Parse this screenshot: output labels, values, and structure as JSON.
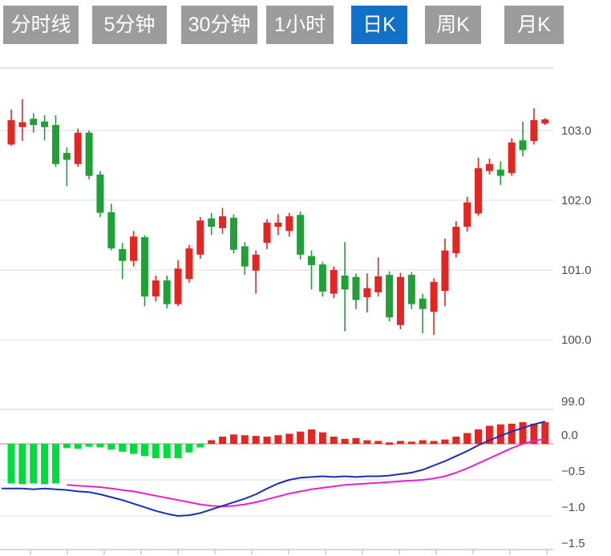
{
  "tabs": [
    {
      "label": "分时线",
      "active": false
    },
    {
      "label": "5分钟",
      "active": false
    },
    {
      "label": "30分钟",
      "active": false
    },
    {
      "label": "1小时",
      "active": false
    },
    {
      "label": "日K",
      "active": true
    },
    {
      "label": "周K",
      "active": false
    },
    {
      "label": "月K",
      "active": false
    }
  ],
  "colors": {
    "tab_bg": "#9C9C9E",
    "tab_active_bg": "#1270C7",
    "tab_text": "#FFFFFF",
    "candle_up": "#E52521",
    "candle_down": "#21A038",
    "hist_up": "#E52521",
    "hist_down": "#00DC3C",
    "dif_line": "#1B2EB4",
    "dea_line": "#E91FD2",
    "grid": "#DBDBDB",
    "panel_border": "#C9C9C9",
    "zero_line": "#ED6A6A",
    "axis_text": "#4D4D4D"
  },
  "chart_data": {
    "type": "candlestick",
    "title": "",
    "subchart": "MACD",
    "grid": true,
    "legend_position": "none",
    "price_axis": {
      "side": "right",
      "ylim": [
        98.95,
        103.9
      ],
      "ticks": [
        {
          "v": 103.0,
          "label": "103.0"
        },
        {
          "v": 102.0,
          "label": "102.0"
        },
        {
          "v": 101.0,
          "label": "101.0"
        },
        {
          "v": 100.0,
          "label": "100.0"
        },
        {
          "v": 99.0,
          "label": "99.0"
        }
      ]
    },
    "macd_axis": {
      "side": "right",
      "ylim": [
        -1.55,
        0.45
      ],
      "ticks": [
        {
          "v": 0.0,
          "label": "0.0"
        },
        {
          "v": -0.5,
          "label": "−0.5"
        },
        {
          "v": -1.0,
          "label": "−1.0"
        },
        {
          "v": -1.5,
          "label": "−1.5"
        }
      ]
    },
    "candles_ohlc_format": [
      "open",
      "high",
      "low",
      "close"
    ],
    "candles": [
      [
        102.8,
        103.3,
        102.78,
        103.15
      ],
      [
        103.05,
        103.45,
        102.85,
        103.12
      ],
      [
        103.17,
        103.25,
        102.97,
        103.08
      ],
      [
        103.13,
        103.22,
        102.86,
        103.05
      ],
      [
        103.08,
        103.22,
        102.48,
        102.52
      ],
      [
        102.68,
        102.76,
        102.2,
        102.58
      ],
      [
        102.52,
        103.03,
        102.48,
        102.97
      ],
      [
        102.97,
        103.0,
        102.3,
        102.35
      ],
      [
        102.37,
        102.42,
        101.76,
        101.82
      ],
      [
        101.83,
        101.95,
        101.28,
        101.31
      ],
      [
        101.3,
        101.39,
        100.87,
        101.13
      ],
      [
        101.13,
        101.56,
        101.05,
        101.48
      ],
      [
        101.47,
        101.5,
        100.48,
        100.62
      ],
      [
        100.62,
        100.92,
        100.55,
        100.85
      ],
      [
        100.85,
        100.92,
        100.45,
        100.51
      ],
      [
        100.51,
        101.14,
        100.48,
        101.02
      ],
      [
        100.87,
        101.36,
        100.82,
        101.31
      ],
      [
        101.22,
        101.76,
        101.16,
        101.71
      ],
      [
        101.74,
        101.82,
        101.5,
        101.62
      ],
      [
        101.6,
        101.89,
        101.52,
        101.77
      ],
      [
        101.75,
        101.8,
        101.24,
        101.29
      ],
      [
        101.34,
        101.4,
        100.93,
        101.05
      ],
      [
        100.99,
        101.28,
        100.66,
        101.22
      ],
      [
        101.39,
        101.73,
        101.3,
        101.68
      ],
      [
        101.62,
        101.8,
        101.5,
        101.68
      ],
      [
        101.56,
        101.82,
        101.48,
        101.77
      ],
      [
        101.79,
        101.84,
        101.15,
        101.22
      ],
      [
        101.2,
        101.28,
        100.72,
        101.07
      ],
      [
        101.08,
        101.12,
        100.62,
        100.69
      ],
      [
        100.66,
        101.05,
        100.6,
        101.0
      ],
      [
        100.92,
        101.4,
        100.12,
        100.72
      ],
      [
        100.9,
        100.95,
        100.44,
        100.57
      ],
      [
        100.61,
        100.95,
        100.39,
        100.74
      ],
      [
        100.68,
        101.18,
        100.62,
        100.91
      ],
      [
        100.93,
        100.98,
        100.26,
        100.32
      ],
      [
        100.21,
        100.96,
        100.15,
        100.9
      ],
      [
        100.93,
        100.97,
        100.44,
        100.51
      ],
      [
        100.59,
        100.66,
        100.09,
        100.44
      ],
      [
        100.4,
        100.88,
        100.07,
        100.83
      ],
      [
        100.7,
        101.45,
        100.48,
        101.28
      ],
      [
        101.24,
        101.7,
        101.18,
        101.62
      ],
      [
        101.62,
        102.05,
        101.55,
        101.97
      ],
      [
        101.81,
        102.61,
        101.78,
        102.46
      ],
      [
        102.42,
        102.6,
        102.37,
        102.52
      ],
      [
        102.44,
        102.56,
        102.22,
        102.35
      ],
      [
        102.39,
        102.89,
        102.35,
        102.83
      ],
      [
        102.86,
        103.13,
        102.63,
        102.72
      ],
      [
        102.85,
        103.32,
        102.8,
        103.15
      ],
      [
        103.1,
        103.18,
        103.08,
        103.16
      ]
    ],
    "macd": {
      "hist": [
        -0.55,
        -0.56,
        -0.55,
        -0.56,
        -0.55,
        -0.06,
        -0.07,
        -0.04,
        -0.05,
        -0.08,
        -0.11,
        -0.14,
        -0.17,
        -0.2,
        -0.2,
        -0.2,
        -0.12,
        -0.05,
        0.05,
        0.1,
        0.13,
        0.12,
        0.11,
        0.1,
        0.12,
        0.14,
        0.17,
        0.2,
        0.16,
        0.1,
        0.07,
        0.08,
        0.05,
        0.04,
        0.02,
        0.04,
        0.03,
        0.05,
        0.04,
        0.06,
        0.1,
        0.15,
        0.2,
        0.25,
        0.27,
        0.28,
        0.3,
        0.28,
        0.3
      ],
      "dif": [
        -0.62,
        -0.62,
        -0.63,
        -0.62,
        -0.63,
        -0.64,
        -0.66,
        -0.67,
        -0.7,
        -0.74,
        -0.78,
        -0.83,
        -0.88,
        -0.93,
        -0.97,
        -1.0,
        -0.99,
        -0.96,
        -0.91,
        -0.86,
        -0.81,
        -0.76,
        -0.7,
        -0.62,
        -0.55,
        -0.5,
        -0.47,
        -0.46,
        -0.45,
        -0.46,
        -0.45,
        -0.46,
        -0.45,
        -0.45,
        -0.44,
        -0.42,
        -0.4,
        -0.36,
        -0.3,
        -0.24,
        -0.17,
        -0.1,
        -0.02,
        0.05,
        0.11,
        0.17,
        0.22,
        0.27,
        0.31
      ],
      "dea": [
        null,
        null,
        null,
        null,
        null,
        -0.57,
        -0.58,
        -0.59,
        -0.6,
        -0.62,
        -0.64,
        -0.66,
        -0.69,
        -0.72,
        -0.75,
        -0.78,
        -0.81,
        -0.84,
        -0.86,
        -0.87,
        -0.86,
        -0.84,
        -0.81,
        -0.77,
        -0.73,
        -0.69,
        -0.66,
        -0.63,
        -0.61,
        -0.59,
        -0.57,
        -0.56,
        -0.55,
        -0.54,
        -0.53,
        -0.52,
        -0.51,
        -0.5,
        -0.48,
        -0.45,
        -0.4,
        -0.34,
        -0.27,
        -0.2,
        -0.13,
        -0.06,
        0.0,
        0.04,
        0.07
      ]
    }
  }
}
